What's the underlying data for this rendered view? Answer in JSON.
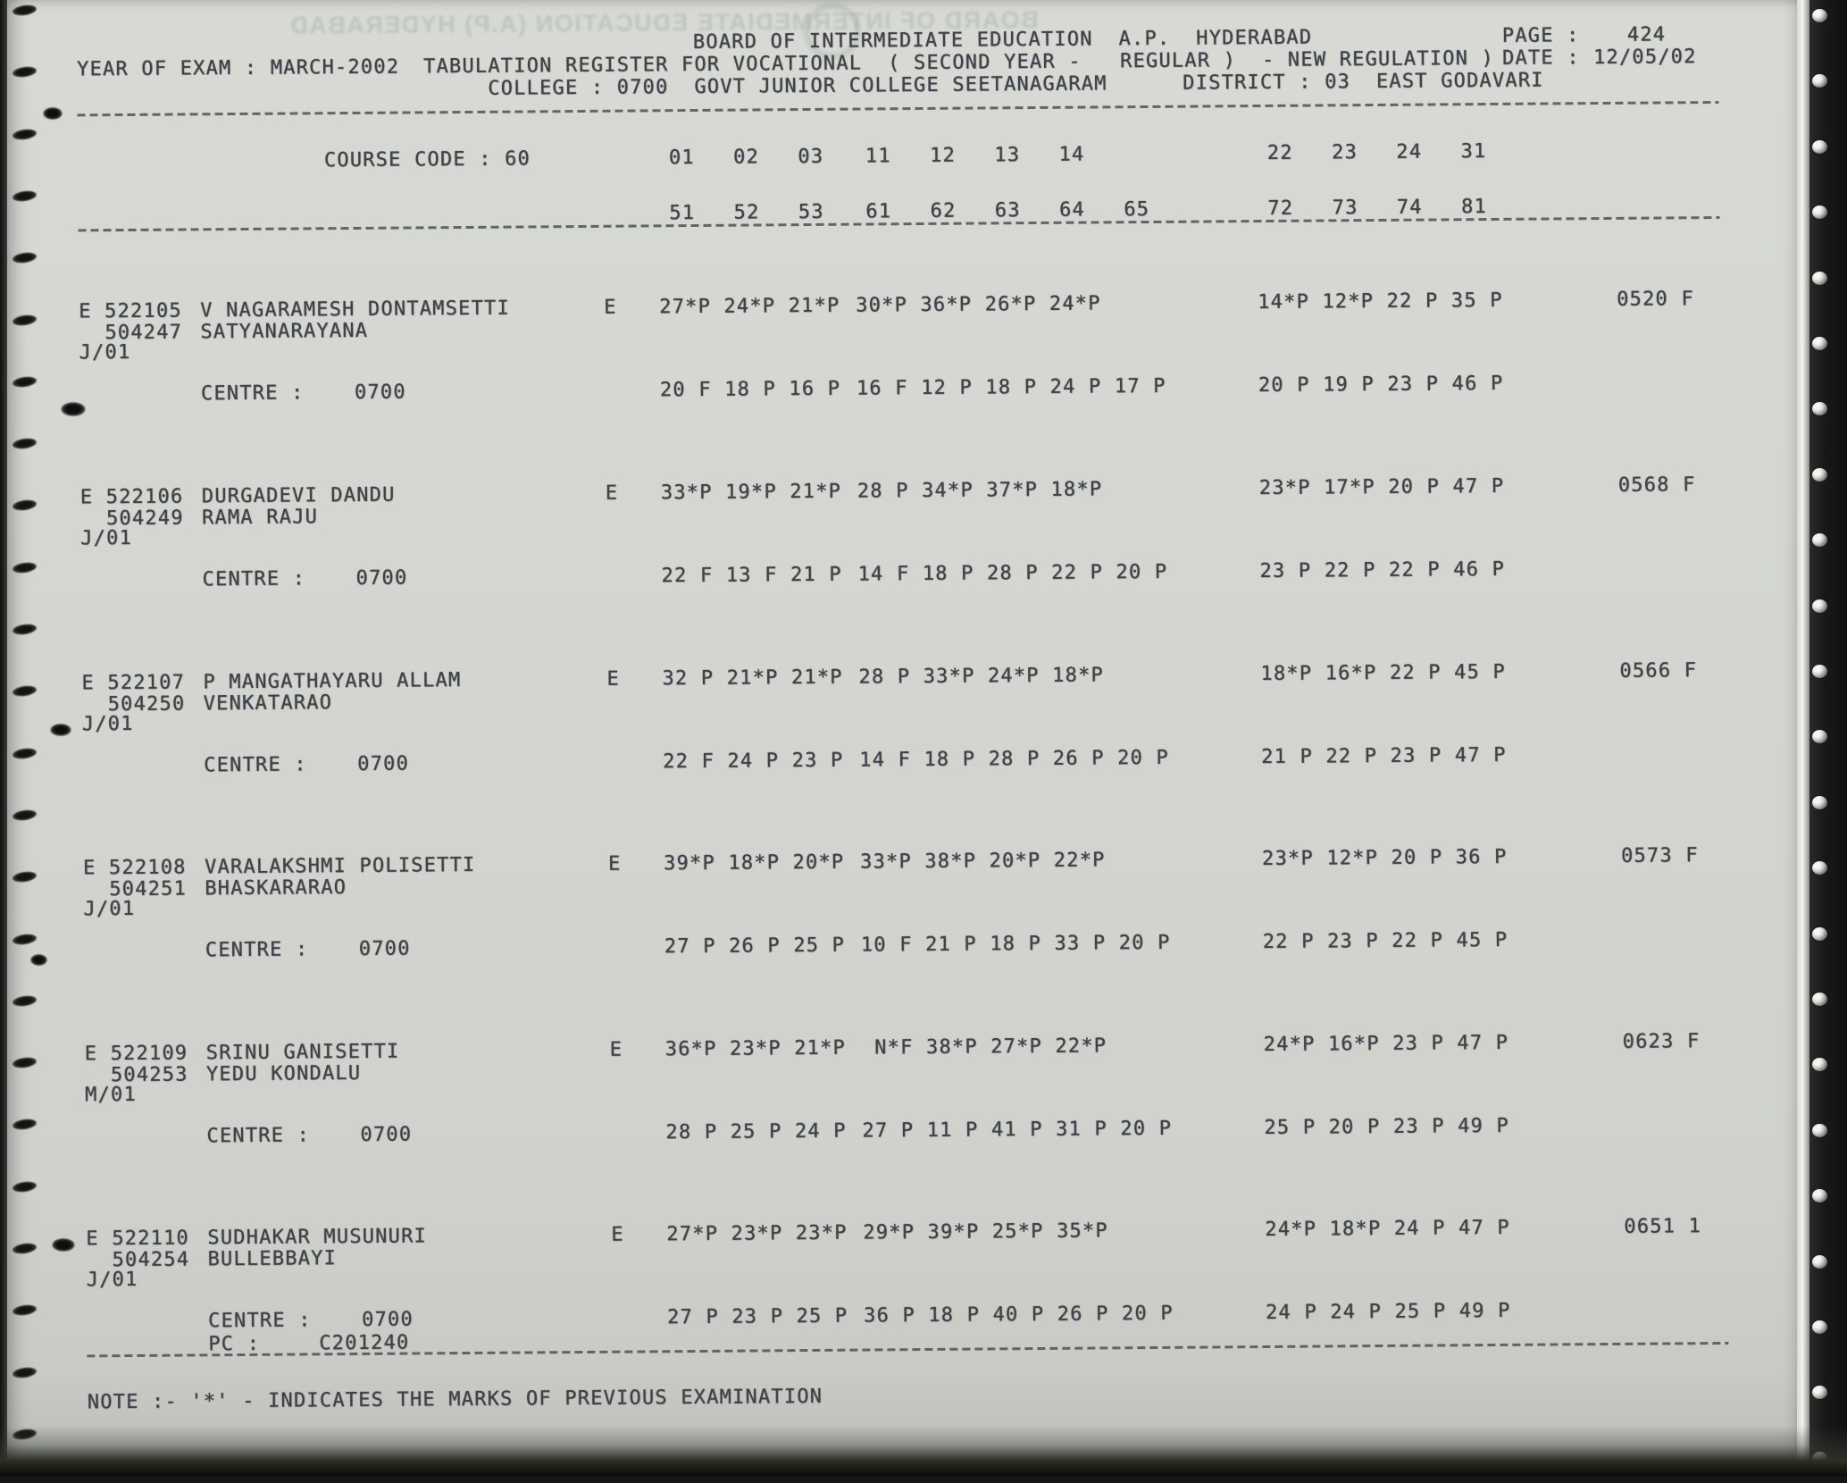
{
  "header": {
    "title": "BOARD OF INTERMEDIATE EDUCATION  A.P.  HYDERABAD",
    "page_label": "PAGE :",
    "page_value": "424",
    "year_line": "YEAR OF EXAM : MARCH-2002",
    "register_line": "TABULATION REGISTER FOR VOCATIONAL  ( SECOND YEAR -   REGULAR )  - NEW REGULATION )",
    "date_label": "DATE :",
    "date_value": "12/05/02",
    "college_line": "COLLEGE : 0700  GOVT JUNIOR COLLEGE SEETANAGARAM",
    "district_line": "DISTRICT : 03  EAST GODAVARI",
    "ghost_bleedthrough": "BOARD OF INTERMEDIATE EDUCATION (A.P) HYDERABAD"
  },
  "course": {
    "label": "COURSE CODE : 60",
    "codes_row1": [
      "01   02   03",
      "11   12   13   14",
      "22   23   24   31"
    ],
    "codes_row2": [
      "51   52   53",
      "61   62   63   64   65",
      "72   73   74   81"
    ]
  },
  "labels": {
    "centre": "CENTRE :",
    "pc": "PC :"
  },
  "records": [
    {
      "reg_line": "E 522105",
      "name": "V NAGARAMESH DONTAMSETTI",
      "second_no": "504247",
      "parent_name": "SATYANARAYANA",
      "month_code": "J/01",
      "medium": "E",
      "marks_prev": [
        "27*P 24*P 21*P",
        "30*P 36*P 26*P 24*P",
        "14*P 12*P 22 P 35 P"
      ],
      "total": "0520 F",
      "centre_value": "0700",
      "marks_centre": [
        "20 F 18 P 16 P",
        "16 F 12 P 18 P 24 P 17 P",
        "20 P 19 P 23 P 46 P"
      ]
    },
    {
      "reg_line": "E 522106",
      "name": "DURGADEVI DANDU",
      "second_no": "504249",
      "parent_name": "RAMA RAJU",
      "month_code": "J/01",
      "medium": "E",
      "marks_prev": [
        "33*P 19*P 21*P",
        "28 P 34*P 37*P 18*P",
        "23*P 17*P 20 P 47 P"
      ],
      "total": "0568 F",
      "centre_value": "0700",
      "marks_centre": [
        "22 F 13 F 21 P",
        "14 F 18 P 28 P 22 P 20 P",
        "23 P 22 P 22 P 46 P"
      ]
    },
    {
      "reg_line": "E 522107",
      "name": "P MANGATHAYARU ALLAM",
      "second_no": "504250",
      "parent_name": "VENKATARAO",
      "month_code": "J/01",
      "medium": "E",
      "marks_prev": [
        "32 P 21*P 21*P",
        "28 P 33*P 24*P 18*P",
        "18*P 16*P 22 P 45 P"
      ],
      "total": "0566 F",
      "centre_value": "0700",
      "marks_centre": [
        "22 F 24 P 23 P",
        "14 F 18 P 28 P 26 P 20 P",
        "21 P 22 P 23 P 47 P"
      ]
    },
    {
      "reg_line": "E 522108",
      "name": "VARALAKSHMI POLISETTI",
      "second_no": "504251",
      "parent_name": "BHASKARARAO",
      "month_code": "J/01",
      "medium": "E",
      "marks_prev": [
        "39*P 18*P 20*P",
        "33*P 38*P 20*P 22*P",
        "23*P 12*P 20 P 36 P"
      ],
      "total": "0573 F",
      "centre_value": "0700",
      "marks_centre": [
        "27 P 26 P 25 P",
        "10 F 21 P 18 P 33 P 20 P",
        "22 P 23 P 22 P 45 P"
      ]
    },
    {
      "reg_line": "E 522109",
      "name": "SRINU GANISETTI",
      "second_no": "504253",
      "parent_name": "YEDU KONDALU",
      "month_code": "M/01",
      "medium": "E",
      "marks_prev": [
        "36*P 23*P 21*P",
        " N*F 38*P 27*P 22*P",
        "24*P 16*P 23 P 47 P"
      ],
      "total": "0623 F",
      "centre_value": "0700",
      "marks_centre": [
        "28 P 25 P 24 P",
        "27 P 11 P 41 P 31 P 20 P",
        "25 P 20 P 23 P 49 P"
      ]
    },
    {
      "reg_line": "E 522110",
      "name": "SUDHAKAR MUSUNURI",
      "second_no": "504254",
      "parent_name": "BULLEBBAYI",
      "month_code": "J/01",
      "medium": "E",
      "marks_prev": [
        "27*P 23*P 23*P",
        "29*P 39*P 25*P 35*P",
        "24*P 18*P 24 P 47 P"
      ],
      "total": "0651 1",
      "centre_value": "0700",
      "pc_value": "C201240",
      "marks_centre": [
        "27 P 23 P 25 P",
        "36 P 18 P 40 P 26 P 20 P",
        "24 P 24 P 25 P 49 P"
      ]
    }
  ],
  "note": "NOTE :- '*' - INDICATES THE MARKS OF PREVIOUS EXAMINATION"
}
